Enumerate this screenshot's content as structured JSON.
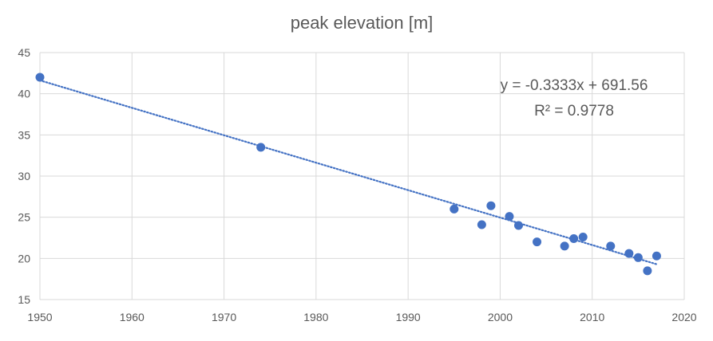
{
  "chart_data": {
    "type": "scatter",
    "title": "peak elevation [m]",
    "xlabel": "",
    "ylabel": "",
    "xlim": [
      1950,
      2020
    ],
    "ylim": [
      15,
      45
    ],
    "x_ticks": [
      1950,
      1960,
      1970,
      1980,
      1990,
      2000,
      2010,
      2020
    ],
    "y_ticks": [
      15,
      20,
      25,
      30,
      35,
      40,
      45
    ],
    "grid": true,
    "legend": "none",
    "marker_color": "#4472c4",
    "trendline_color": "#4472c4",
    "series": [
      {
        "x": [
          1950,
          1974,
          1995,
          1998,
          1999,
          2001,
          2002,
          2004,
          2007,
          2008,
          2009,
          2012,
          2014,
          2015,
          2016,
          2017
        ],
        "y": [
          42.0,
          33.5,
          26.0,
          24.1,
          26.4,
          25.1,
          24.0,
          22.0,
          21.5,
          22.4,
          22.6,
          21.5,
          20.6,
          20.1,
          18.5,
          20.3
        ]
      }
    ],
    "trendline": {
      "type": "linear",
      "slope": -0.3333,
      "intercept": 691.56,
      "x_range": [
        1950,
        2017
      ],
      "equation_label": "y = -0.3333x + 691.56",
      "r2_label": "R² = 0.9778"
    }
  }
}
